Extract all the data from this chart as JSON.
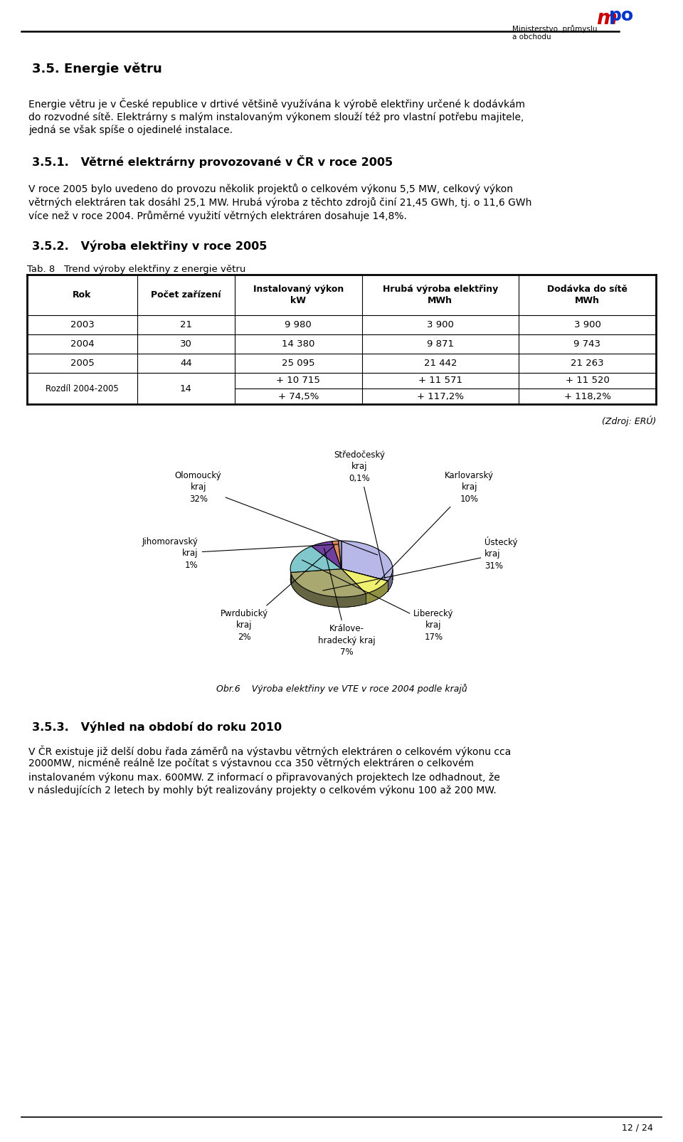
{
  "bg_color": "#ffffff",
  "header1": "3.5. Energie větru",
  "para1_lines": [
    "Energie větru je v České republice v drtivé většině využívána k výrobě elektřiny určené k dodávkám",
    "do rozvodné sítě. Elektrárny s malým instalovaným výkonem slouží též pro vlastní potřebu majitele,",
    "jedná se však spíše o ojedinelé instalace."
  ],
  "header2": "3.5.1.   Větrné elektrárny provozované v ČR v roce 2005",
  "para2_lines": [
    "V roce 2005 bylo uvedeno do provozu několik projektů o celkovém výkonu 5,5 MW, celkový výkon",
    "větrných elektráren tak dosáhl 25,1 MW. Hrubá výroba z těchto zdrojů činí 21,45 GWh, tj. o 11,6 GWh",
    "více než v roce 2004. Průměrné využití větrných elektráren dosahuje 14,8%."
  ],
  "header3": "3.5.2.   Výroba elektřiny v roce 2005",
  "tab_title": "Tab. 8   Trend výroby elektřiny z energie větru",
  "col_headers": [
    "Rok",
    "Počet zařízení",
    "Instalovaný výkon\nkW",
    "Hrubá výroba elektřiny\nMWh",
    "Dodávka do sítě\nMWh"
  ],
  "table_rows_data": [
    [
      "2003",
      "21",
      "9 980",
      "3 900",
      "3 900"
    ],
    [
      "2004",
      "30",
      "14 380",
      "9 871",
      "9 743"
    ],
    [
      "2005",
      "44",
      "25 095",
      "21 442",
      "21 263"
    ]
  ],
  "last_row_col01": [
    "Rozdíl 2004-2005",
    "14"
  ],
  "last_row_top": [
    "+ 10 715",
    "+ 11 571",
    "+ 11 520"
  ],
  "last_row_bot": [
    "+ 74,5%",
    "+ 117,2%",
    "+ 118,2%"
  ],
  "source": "(Zdroj: ERÚ)",
  "pie_values": [
    32,
    0.1,
    10,
    31,
    17,
    7,
    2,
    1
  ],
  "pie_colors": [
    "#b8b8e8",
    "#993399",
    "#f0f070",
    "#a8a870",
    "#80c8cc",
    "#7040a0",
    "#e08858",
    "#b0a0c0"
  ],
  "pie_label_texts": [
    "Olomoucký\nkraj\n32%",
    "Středočeský\nkraj\n0,1%",
    "Karlovarský\nkraj\n10%",
    "Ústecký\nkraj\n31%",
    "Liberecký\nkraj\n17%",
    "Králove-\nhradecký kraj\n7%",
    "Pwrdubický\nkraj\n2%",
    "Jihomoravský\nkraj\n1%"
  ],
  "pie_caption": "Obr.6    Výroba elektřiny ve VTE v roce 2004 podle krajů",
  "header4": "3.5.3.   Výhled na období do roku 2010",
  "para3_lines": [
    "V ČR existuje již delší dobu řada záměrů na výstavbu větrných elektráren o celkovém výkonu cca",
    "2000MW, nicméně reálně lze počítat s výstavnou cca 350 větrných elektráren o celkovém",
    "instalovaném výkonu max. 600MW. Z informací o připravovaných projektech lze odhadnout, že",
    "v následujících 2 letech by mohly být realizovány projekty o celkovém výkonu 100 až 200 MW."
  ],
  "page_num": "12 / 24",
  "logo_line1": "Ministerstvo  průmyslu",
  "logo_line2": "a obchodu"
}
